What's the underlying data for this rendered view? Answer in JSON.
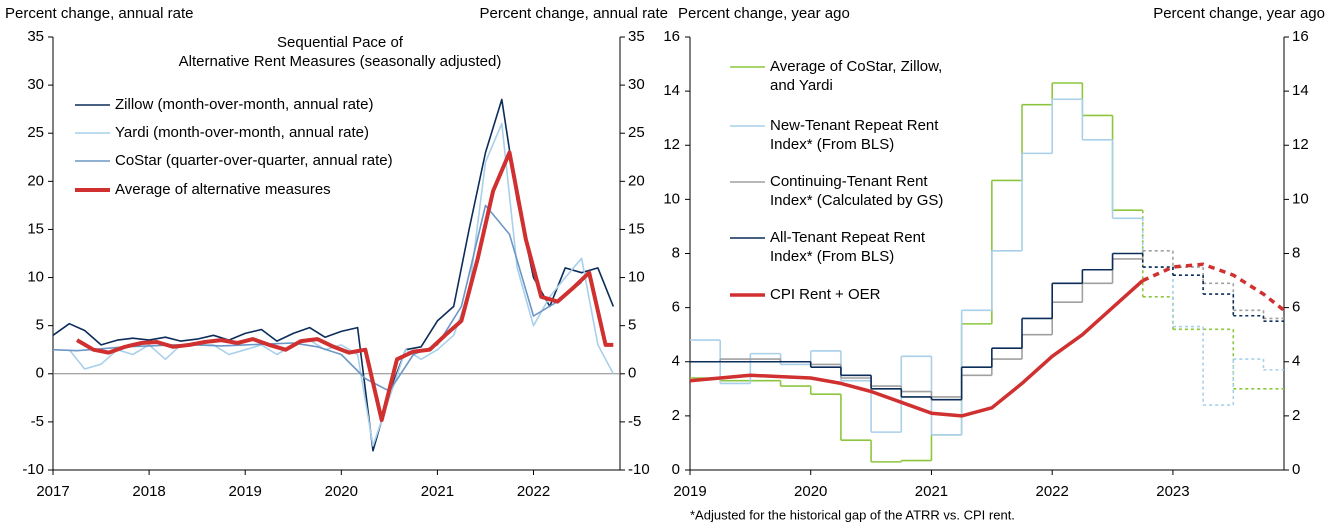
{
  "chart_data": [
    {
      "type": "line",
      "title": [
        "Sequential Pace of",
        "Alternative Rent Measures (seasonally adjusted)"
      ],
      "y_label": "Percent change, annual rate",
      "y2_label": "Percent change, annual rate",
      "xlim": [
        2017,
        2022.9
      ],
      "xticks": [
        2017,
        2018,
        2019,
        2020,
        2021,
        2022
      ],
      "ylim": [
        -10,
        35
      ],
      "yticks": [
        -10,
        -5,
        0,
        5,
        10,
        15,
        20,
        25,
        30,
        35
      ],
      "y2lim": [
        -10,
        35
      ],
      "y2ticks": [
        -10,
        -5,
        0,
        5,
        10,
        15,
        20,
        25,
        30,
        35
      ],
      "zero_line": true,
      "legend": "upper left",
      "series": [
        {
          "name": "Zillow (month-over-month, annual rate)",
          "color": "#0c2d5a",
          "linewidth": 1.6,
          "x": [
            2017,
            2017.17,
            2017.33,
            2017.5,
            2017.67,
            2017.83,
            2018,
            2018.17,
            2018.33,
            2018.5,
            2018.67,
            2018.83,
            2019,
            2019.17,
            2019.33,
            2019.5,
            2019.67,
            2019.83,
            2020,
            2020.17,
            2020.33,
            2020.5,
            2020.67,
            2020.83,
            2021,
            2021.17,
            2021.33,
            2021.5,
            2021.67,
            2021.83,
            2022,
            2022.17,
            2022.33,
            2022.5,
            2022.67,
            2022.83
          ],
          "values": [
            4,
            5.2,
            4.5,
            3,
            3.5,
            3.7,
            3.5,
            3.8,
            3.4,
            3.6,
            4,
            3.5,
            4.2,
            4.6,
            3.4,
            4.2,
            4.8,
            3.8,
            4.4,
            4.8,
            -8,
            -2,
            2.5,
            2.8,
            5.5,
            7,
            15,
            23,
            28.5,
            18,
            10,
            7,
            11,
            10.5,
            11,
            7
          ]
        },
        {
          "name": "Yardi (month-over-month, annual rate)",
          "color": "#a9d0ea",
          "linewidth": 1.6,
          "x": [
            2017.17,
            2017.33,
            2017.5,
            2017.67,
            2017.83,
            2018,
            2018.17,
            2018.33,
            2018.5,
            2018.67,
            2018.83,
            2019,
            2019.17,
            2019.33,
            2019.5,
            2019.67,
            2019.83,
            2020,
            2020.17,
            2020.33,
            2020.5,
            2020.67,
            2020.83,
            2021,
            2021.17,
            2021.33,
            2021.5,
            2021.67,
            2021.83,
            2022,
            2022.17,
            2022.33,
            2022.5,
            2022.67,
            2022.83
          ],
          "values": [
            2.5,
            0.5,
            1,
            2.5,
            2,
            3,
            1.5,
            3,
            3,
            3,
            2,
            2.5,
            3,
            2,
            3,
            3.5,
            2.5,
            3,
            2,
            -7.5,
            -2.5,
            2.5,
            1.5,
            2.5,
            4,
            8.5,
            22,
            26,
            11,
            5,
            8,
            10,
            12,
            3,
            0
          ]
        },
        {
          "name": "CoStar (quarter-over-quarter, annual rate)",
          "color": "#6b96c6",
          "linewidth": 1.6,
          "x": [
            2017,
            2017.25,
            2017.5,
            2017.75,
            2018,
            2018.25,
            2018.5,
            2018.75,
            2019,
            2019.25,
            2019.5,
            2019.75,
            2020,
            2020.25,
            2020.5,
            2020.75,
            2021,
            2021.25,
            2021.5,
            2021.75,
            2022,
            2022.25,
            2022.5
          ],
          "values": [
            2.5,
            2.4,
            2.6,
            2.8,
            2.9,
            3,
            3,
            2.9,
            3,
            3.1,
            3.2,
            2.8,
            2,
            -0.5,
            -1.8,
            2,
            3,
            7,
            17.5,
            14.5,
            6,
            7.5,
            9.5
          ]
        },
        {
          "name": "Average of alternative measures",
          "color": "#d03030",
          "linewidth": 4,
          "x": [
            2017.25,
            2017.42,
            2017.58,
            2017.75,
            2017.92,
            2018.08,
            2018.25,
            2018.42,
            2018.58,
            2018.75,
            2018.92,
            2019.08,
            2019.25,
            2019.42,
            2019.58,
            2019.75,
            2019.92,
            2020.08,
            2020.25,
            2020.42,
            2020.58,
            2020.75,
            2020.92,
            2021.08,
            2021.25,
            2021.42,
            2021.58,
            2021.75,
            2021.92,
            2022.08,
            2022.25,
            2022.42,
            2022.58,
            2022.75,
            2022.83
          ],
          "values": [
            3.5,
            2.5,
            2.2,
            2.8,
            3.2,
            3.3,
            2.8,
            3,
            3.3,
            3.5,
            3.2,
            3.6,
            3,
            2.5,
            3.4,
            3.6,
            2.8,
            2.2,
            2.5,
            -4.8,
            1.5,
            2.3,
            2.5,
            4,
            5.5,
            12,
            19,
            23,
            14,
            8,
            7.5,
            9,
            10.5,
            3,
            3
          ]
        }
      ]
    },
    {
      "type": "line",
      "y_label": "Percent change, year ago",
      "y2_label": "Percent change, year ago",
      "footnote": "*Adjusted for the historical gap of the ATRR vs. CPI rent.",
      "xlim": [
        2019,
        2023.92
      ],
      "xticks": [
        2019,
        2020,
        2021,
        2022,
        2023
      ],
      "ylim": [
        0,
        16
      ],
      "yticks": [
        0,
        2,
        4,
        6,
        8,
        10,
        12,
        14,
        16
      ],
      "y2lim": [
        0,
        16
      ],
      "y2ticks": [
        0,
        2,
        4,
        6,
        8,
        10,
        12,
        14,
        16
      ],
      "dashed_after": 2022.75,
      "legend": "upper left",
      "series": [
        {
          "name": [
            "Average of CoStar, Zillow,",
            "and Yardi"
          ],
          "color": "#8cc63f",
          "linewidth": 1.6,
          "step": true,
          "x": [
            2019,
            2019.25,
            2019.5,
            2019.75,
            2020,
            2020.25,
            2020.5,
            2020.75,
            2021,
            2021.25,
            2021.5,
            2021.75,
            2022,
            2022.25,
            2022.5,
            2022.75,
            2023,
            2023.25,
            2023.5,
            2023.75
          ],
          "values": [
            3.4,
            3.3,
            3.3,
            3.1,
            2.8,
            1.1,
            0.3,
            0.35,
            1.3,
            5.4,
            10.7,
            13.5,
            14.3,
            13.1,
            9.6,
            6.4,
            5.2,
            5.2,
            3,
            3
          ]
        },
        {
          "name": [
            "New-Tenant Repeat Rent",
            "Index* (From BLS)"
          ],
          "color": "#a9d0ea",
          "linewidth": 1.6,
          "step": true,
          "x": [
            2019,
            2019.25,
            2019.5,
            2019.75,
            2020,
            2020.25,
            2020.5,
            2020.75,
            2021,
            2021.25,
            2021.5,
            2021.75,
            2022,
            2022.25,
            2022.5,
            2022.75,
            2023,
            2023.25,
            2023.5,
            2023.75
          ],
          "values": [
            4.8,
            3.2,
            4.3,
            3.9,
            4.4,
            3.3,
            1.4,
            4.2,
            1.3,
            5.9,
            8.1,
            11.7,
            13.7,
            12.2,
            9.3,
            7.5,
            5.3,
            2.4,
            4.1,
            3.7
          ]
        },
        {
          "name": [
            "Continuing-Tenant Rent",
            "Index* (Calculated by GS)"
          ],
          "color": "#a0a0a0",
          "linewidth": 1.6,
          "step": true,
          "x": [
            2019,
            2019.25,
            2019.5,
            2019.75,
            2020,
            2020.25,
            2020.5,
            2020.75,
            2021,
            2021.25,
            2021.5,
            2021.75,
            2022,
            2022.25,
            2022.5,
            2022.75,
            2023,
            2023.25,
            2023.5,
            2023.75
          ],
          "values": [
            4,
            4.1,
            4.1,
            4,
            3.9,
            3.4,
            3.1,
            2.9,
            2.7,
            3.5,
            4.1,
            5,
            6.2,
            6.9,
            7.8,
            8.1,
            7.5,
            6.9,
            5.9,
            5.6
          ]
        },
        {
          "name": [
            "All-Tenant Repeat Rent",
            "Index* (From BLS)"
          ],
          "color": "#0c2d5a",
          "linewidth": 1.6,
          "step": true,
          "x": [
            2019,
            2019.25,
            2019.5,
            2019.75,
            2020,
            2020.25,
            2020.5,
            2020.75,
            2021,
            2021.25,
            2021.5,
            2021.75,
            2022,
            2022.25,
            2022.5,
            2022.75,
            2023,
            2023.25,
            2023.5,
            2023.75
          ],
          "values": [
            4,
            4,
            4,
            4,
            3.8,
            3.5,
            3,
            2.7,
            2.6,
            3.8,
            4.5,
            5.6,
            6.9,
            7.4,
            8,
            7.5,
            7.2,
            6.5,
            5.7,
            5.5
          ]
        },
        {
          "name": "CPI Rent + OER",
          "color": "#d03030",
          "linewidth": 3.5,
          "x": [
            2019,
            2019.25,
            2019.5,
            2019.75,
            2020,
            2020.25,
            2020.5,
            2020.75,
            2021,
            2021.25,
            2021.5,
            2021.75,
            2022,
            2022.25,
            2022.5,
            2022.75,
            2023,
            2023.25,
            2023.5,
            2023.75,
            2023.92
          ],
          "values": [
            3.3,
            3.4,
            3.5,
            3.45,
            3.4,
            3.2,
            2.9,
            2.5,
            2.1,
            2,
            2.3,
            3.2,
            4.2,
            5,
            6,
            7,
            7.5,
            7.6,
            7.2,
            6.5,
            5.9
          ]
        }
      ]
    }
  ]
}
